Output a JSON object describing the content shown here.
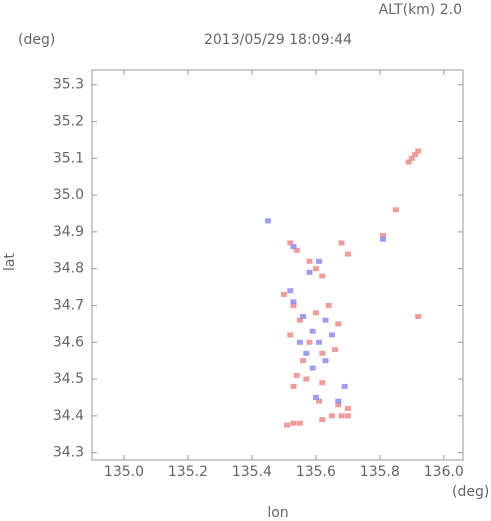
{
  "chart_data": {
    "type": "scatter",
    "title": "2013/05/29 18:09:44",
    "altitude_label": "ALT(km) 2.0",
    "y_unit": "(deg)",
    "x_unit": "(deg)",
    "x_label": "lon",
    "y_label": "lat",
    "xlim": [
      134.9,
      136.06
    ],
    "ylim": [
      34.28,
      35.34
    ],
    "xticks": [
      {
        "value": 135,
        "label": "135.0"
      },
      135.2,
      135.4,
      135.6,
      135.8,
      {
        "value": 136,
        "label": "136.0"
      }
    ],
    "yticks": [
      34.3,
      34.4,
      34.5,
      34.6,
      34.7,
      34.8,
      34.9,
      {
        "value": 35,
        "label": "35.0"
      },
      35.1,
      35.2,
      35.3
    ],
    "series": [
      {
        "color": "#f08a8a",
        "x": [
          135.9,
          135.91,
          135.92,
          135.89,
          135.85,
          135.81,
          135.92,
          135.52,
          135.54,
          135.68,
          135.7,
          135.58,
          135.6,
          135.62,
          135.5,
          135.53,
          135.55,
          135.6,
          135.64,
          135.67,
          135.52,
          135.58,
          135.62,
          135.56,
          135.66,
          135.54,
          135.57,
          135.62,
          135.53,
          135.61,
          135.67,
          135.7,
          135.65,
          135.68,
          135.7,
          135.62,
          135.55,
          135.51,
          135.53
        ],
        "values": [
          35.1,
          35.11,
          35.12,
          35.09,
          34.96,
          34.89,
          34.67,
          34.87,
          34.85,
          34.87,
          34.84,
          34.82,
          34.8,
          34.78,
          34.73,
          34.7,
          34.66,
          34.68,
          34.7,
          34.65,
          34.62,
          34.6,
          34.57,
          34.55,
          34.58,
          34.51,
          34.5,
          34.49,
          34.48,
          34.44,
          34.43,
          34.42,
          34.4,
          34.4,
          34.4,
          34.39,
          34.38,
          34.375,
          34.38
        ]
      },
      {
        "color": "#8c8cf0",
        "x": [
          135.45,
          135.81,
          135.53,
          135.58,
          135.61,
          135.53,
          135.56,
          135.59,
          135.63,
          135.55,
          135.61,
          135.65,
          135.57,
          135.63,
          135.59,
          135.69,
          135.67,
          135.6,
          135.52
        ],
        "values": [
          34.93,
          34.88,
          34.86,
          34.79,
          34.82,
          34.71,
          34.67,
          34.63,
          34.66,
          34.6,
          34.6,
          34.62,
          34.57,
          34.55,
          34.53,
          34.48,
          34.44,
          34.45,
          34.74
        ]
      }
    ]
  }
}
